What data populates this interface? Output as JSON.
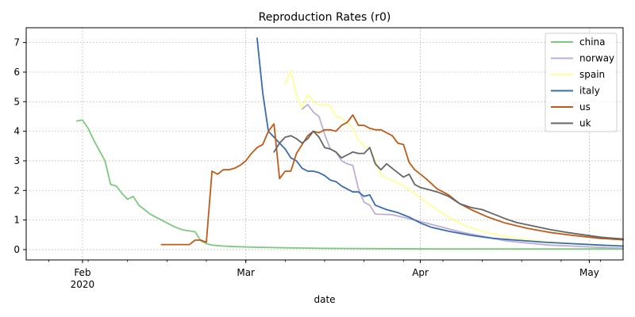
{
  "chart_data": {
    "type": "line",
    "title": "Reproduction Rates (r0)",
    "xlabel": "date",
    "ylabel": "",
    "x_axis_type": "date",
    "xlim": [
      "2020-01-22",
      "2020-05-07"
    ],
    "ylim": [
      -0.35,
      7.5
    ],
    "x_major_ticks": [
      {
        "date": "2020-02-01",
        "label": "Feb",
        "sublabel": "2020"
      },
      {
        "date": "2020-03-01",
        "label": "Mar",
        "sublabel": ""
      },
      {
        "date": "2020-04-01",
        "label": "Apr",
        "sublabel": ""
      },
      {
        "date": "2020-05-01",
        "label": "May",
        "sublabel": ""
      }
    ],
    "y_ticks": [
      0,
      1,
      2,
      3,
      4,
      5,
      6,
      7
    ],
    "grid": true,
    "legend_position": "top-right",
    "series": [
      {
        "name": "china",
        "color": "#7fc97f",
        "points": [
          [
            "2020-01-31",
            4.35
          ],
          [
            "2020-02-01",
            4.38
          ],
          [
            "2020-02-02",
            4.1
          ],
          [
            "2020-02-03",
            3.7
          ],
          [
            "2020-02-04",
            3.35
          ],
          [
            "2020-02-05",
            3.0
          ],
          [
            "2020-02-06",
            2.2
          ],
          [
            "2020-02-07",
            2.15
          ],
          [
            "2020-02-08",
            1.9
          ],
          [
            "2020-02-09",
            1.7
          ],
          [
            "2020-02-10",
            1.8
          ],
          [
            "2020-02-11",
            1.5
          ],
          [
            "2020-02-12",
            1.35
          ],
          [
            "2020-02-13",
            1.2
          ],
          [
            "2020-02-14",
            1.1
          ],
          [
            "2020-02-15",
            1.0
          ],
          [
            "2020-02-16",
            0.9
          ],
          [
            "2020-02-17",
            0.8
          ],
          [
            "2020-02-18",
            0.72
          ],
          [
            "2020-02-19",
            0.66
          ],
          [
            "2020-02-20",
            0.63
          ],
          [
            "2020-02-21",
            0.6
          ],
          [
            "2020-02-22",
            0.3
          ],
          [
            "2020-02-23",
            0.2
          ],
          [
            "2020-02-24",
            0.15
          ],
          [
            "2020-02-26",
            0.12
          ],
          [
            "2020-02-28",
            0.1
          ],
          [
            "2020-03-03",
            0.08
          ],
          [
            "2020-03-08",
            0.06
          ],
          [
            "2020-03-15",
            0.04
          ],
          [
            "2020-03-25",
            0.03
          ],
          [
            "2020-04-05",
            0.02
          ],
          [
            "2020-04-20",
            0.02
          ],
          [
            "2020-05-07",
            0.02
          ]
        ]
      },
      {
        "name": "norway",
        "color": "#beaed4",
        "points": [
          [
            "2020-03-11",
            4.75
          ],
          [
            "2020-03-12",
            4.9
          ],
          [
            "2020-03-13",
            4.65
          ],
          [
            "2020-03-14",
            4.5
          ],
          [
            "2020-03-15",
            3.9
          ],
          [
            "2020-03-16",
            3.4
          ],
          [
            "2020-03-17",
            3.3
          ],
          [
            "2020-03-18",
            3.0
          ],
          [
            "2020-03-19",
            2.9
          ],
          [
            "2020-03-20",
            2.85
          ],
          [
            "2020-03-21",
            2.05
          ],
          [
            "2020-03-22",
            1.6
          ],
          [
            "2020-03-23",
            1.5
          ],
          [
            "2020-03-24",
            1.2
          ],
          [
            "2020-03-27",
            1.18
          ],
          [
            "2020-03-31",
            1.0
          ],
          [
            "2020-04-03",
            0.85
          ],
          [
            "2020-04-06",
            0.7
          ],
          [
            "2020-04-08",
            0.6
          ],
          [
            "2020-04-12",
            0.45
          ],
          [
            "2020-04-16",
            0.3
          ],
          [
            "2020-04-20",
            0.22
          ],
          [
            "2020-04-24",
            0.15
          ],
          [
            "2020-04-28",
            0.12
          ],
          [
            "2020-05-02",
            0.08
          ],
          [
            "2020-05-07",
            0.05
          ]
        ]
      },
      {
        "name": "spain",
        "color": "#ffff99",
        "points": [
          [
            "2020-03-08",
            5.6
          ],
          [
            "2020-03-09",
            6.05
          ],
          [
            "2020-03-10",
            5.2
          ],
          [
            "2020-03-11",
            4.8
          ],
          [
            "2020-03-12",
            5.25
          ],
          [
            "2020-03-13",
            5.0
          ],
          [
            "2020-03-14",
            4.9
          ],
          [
            "2020-03-15",
            4.9
          ],
          [
            "2020-03-16",
            4.85
          ],
          [
            "2020-03-17",
            4.5
          ],
          [
            "2020-03-18",
            4.45
          ],
          [
            "2020-03-19",
            4.3
          ],
          [
            "2020-03-20",
            4.1
          ],
          [
            "2020-03-21",
            3.7
          ],
          [
            "2020-03-22",
            3.5
          ],
          [
            "2020-03-23",
            3.45
          ],
          [
            "2020-03-24",
            3.0
          ],
          [
            "2020-03-25",
            2.5
          ],
          [
            "2020-03-27",
            2.35
          ],
          [
            "2020-03-29",
            2.15
          ],
          [
            "2020-03-31",
            1.9
          ],
          [
            "2020-04-02",
            1.6
          ],
          [
            "2020-04-04",
            1.35
          ],
          [
            "2020-04-06",
            1.1
          ],
          [
            "2020-04-09",
            0.8
          ],
          [
            "2020-04-12",
            0.62
          ],
          [
            "2020-04-16",
            0.45
          ],
          [
            "2020-04-20",
            0.33
          ],
          [
            "2020-04-25",
            0.25
          ],
          [
            "2020-05-01",
            0.18
          ],
          [
            "2020-05-07",
            0.12
          ]
        ]
      },
      {
        "name": "italy",
        "color": "#386cb0",
        "points": [
          [
            "2020-03-03",
            7.15
          ],
          [
            "2020-03-04",
            5.3
          ],
          [
            "2020-03-05",
            4.0
          ],
          [
            "2020-03-06",
            3.8
          ],
          [
            "2020-03-07",
            3.6
          ],
          [
            "2020-03-08",
            3.4
          ],
          [
            "2020-03-09",
            3.1
          ],
          [
            "2020-03-10",
            3.0
          ],
          [
            "2020-03-11",
            2.75
          ],
          [
            "2020-03-12",
            2.65
          ],
          [
            "2020-03-13",
            2.65
          ],
          [
            "2020-03-14",
            2.6
          ],
          [
            "2020-03-15",
            2.5
          ],
          [
            "2020-03-16",
            2.35
          ],
          [
            "2020-03-17",
            2.3
          ],
          [
            "2020-03-18",
            2.15
          ],
          [
            "2020-03-19",
            2.05
          ],
          [
            "2020-03-20",
            1.95
          ],
          [
            "2020-03-21",
            1.95
          ],
          [
            "2020-03-22",
            1.8
          ],
          [
            "2020-03-23",
            1.85
          ],
          [
            "2020-03-24",
            1.5
          ],
          [
            "2020-03-26",
            1.35
          ],
          [
            "2020-03-28",
            1.25
          ],
          [
            "2020-03-30",
            1.1
          ],
          [
            "2020-04-01",
            0.9
          ],
          [
            "2020-04-03",
            0.75
          ],
          [
            "2020-04-06",
            0.62
          ],
          [
            "2020-04-10",
            0.48
          ],
          [
            "2020-04-14",
            0.38
          ],
          [
            "2020-04-18",
            0.32
          ],
          [
            "2020-04-23",
            0.25
          ],
          [
            "2020-04-28",
            0.2
          ],
          [
            "2020-05-03",
            0.15
          ],
          [
            "2020-05-07",
            0.12
          ]
        ]
      },
      {
        "name": "us",
        "color": "#bf5b17",
        "points": [
          [
            "2020-02-15",
            0.17
          ],
          [
            "2020-02-20",
            0.17
          ],
          [
            "2020-02-21",
            0.32
          ],
          [
            "2020-02-22",
            0.32
          ],
          [
            "2020-02-23",
            0.25
          ],
          [
            "2020-02-24",
            2.65
          ],
          [
            "2020-02-25",
            2.55
          ],
          [
            "2020-02-26",
            2.7
          ],
          [
            "2020-02-27",
            2.7
          ],
          [
            "2020-02-28",
            2.75
          ],
          [
            "2020-02-29",
            2.85
          ],
          [
            "2020-03-01",
            3.0
          ],
          [
            "2020-03-02",
            3.25
          ],
          [
            "2020-03-03",
            3.45
          ],
          [
            "2020-03-04",
            3.55
          ],
          [
            "2020-03-05",
            4.0
          ],
          [
            "2020-03-06",
            4.25
          ],
          [
            "2020-03-07",
            2.4
          ],
          [
            "2020-03-08",
            2.65
          ],
          [
            "2020-03-09",
            2.65
          ],
          [
            "2020-03-10",
            3.25
          ],
          [
            "2020-03-11",
            3.55
          ],
          [
            "2020-03-12",
            3.85
          ],
          [
            "2020-03-13",
            4.0
          ],
          [
            "2020-03-14",
            3.95
          ],
          [
            "2020-03-15",
            4.05
          ],
          [
            "2020-03-16",
            4.05
          ],
          [
            "2020-03-17",
            4.0
          ],
          [
            "2020-03-18",
            4.2
          ],
          [
            "2020-03-19",
            4.3
          ],
          [
            "2020-03-20",
            4.55
          ],
          [
            "2020-03-21",
            4.2
          ],
          [
            "2020-03-22",
            4.2
          ],
          [
            "2020-03-23",
            4.1
          ],
          [
            "2020-03-24",
            4.05
          ],
          [
            "2020-03-25",
            4.05
          ],
          [
            "2020-03-26",
            3.95
          ],
          [
            "2020-03-27",
            3.85
          ],
          [
            "2020-03-28",
            3.6
          ],
          [
            "2020-03-29",
            3.55
          ],
          [
            "2020-03-30",
            2.95
          ],
          [
            "2020-03-31",
            2.7
          ],
          [
            "2020-04-02",
            2.4
          ],
          [
            "2020-04-04",
            2.05
          ],
          [
            "2020-04-06",
            1.85
          ],
          [
            "2020-04-08",
            1.55
          ],
          [
            "2020-04-10",
            1.35
          ],
          [
            "2020-04-13",
            1.1
          ],
          [
            "2020-04-16",
            0.9
          ],
          [
            "2020-04-20",
            0.72
          ],
          [
            "2020-04-24",
            0.58
          ],
          [
            "2020-04-28",
            0.48
          ],
          [
            "2020-05-03",
            0.38
          ],
          [
            "2020-05-07",
            0.33
          ]
        ]
      },
      {
        "name": "uk",
        "color": "#666666",
        "points": [
          [
            "2020-03-06",
            3.3
          ],
          [
            "2020-03-07",
            3.6
          ],
          [
            "2020-03-08",
            3.8
          ],
          [
            "2020-03-09",
            3.85
          ],
          [
            "2020-03-10",
            3.75
          ],
          [
            "2020-03-11",
            3.6
          ],
          [
            "2020-03-12",
            3.75
          ],
          [
            "2020-03-13",
            4.0
          ],
          [
            "2020-03-14",
            3.8
          ],
          [
            "2020-03-15",
            3.45
          ],
          [
            "2020-03-16",
            3.4
          ],
          [
            "2020-03-17",
            3.3
          ],
          [
            "2020-03-18",
            3.1
          ],
          [
            "2020-03-19",
            3.2
          ],
          [
            "2020-03-20",
            3.3
          ],
          [
            "2020-03-21",
            3.25
          ],
          [
            "2020-03-22",
            3.25
          ],
          [
            "2020-03-23",
            3.45
          ],
          [
            "2020-03-24",
            2.9
          ],
          [
            "2020-03-25",
            2.7
          ],
          [
            "2020-03-26",
            2.9
          ],
          [
            "2020-03-27",
            2.75
          ],
          [
            "2020-03-28",
            2.6
          ],
          [
            "2020-03-29",
            2.45
          ],
          [
            "2020-03-30",
            2.55
          ],
          [
            "2020-03-31",
            2.2
          ],
          [
            "2020-04-01",
            2.1
          ],
          [
            "2020-04-02",
            2.05
          ],
          [
            "2020-04-04",
            1.95
          ],
          [
            "2020-04-06",
            1.8
          ],
          [
            "2020-04-08",
            1.55
          ],
          [
            "2020-04-10",
            1.42
          ],
          [
            "2020-04-12",
            1.35
          ],
          [
            "2020-04-14",
            1.2
          ],
          [
            "2020-04-16",
            1.05
          ],
          [
            "2020-04-18",
            0.92
          ],
          [
            "2020-04-21",
            0.8
          ],
          [
            "2020-04-24",
            0.68
          ],
          [
            "2020-04-27",
            0.58
          ],
          [
            "2020-04-30",
            0.5
          ],
          [
            "2020-05-03",
            0.42
          ],
          [
            "2020-05-07",
            0.36
          ]
        ]
      }
    ]
  }
}
